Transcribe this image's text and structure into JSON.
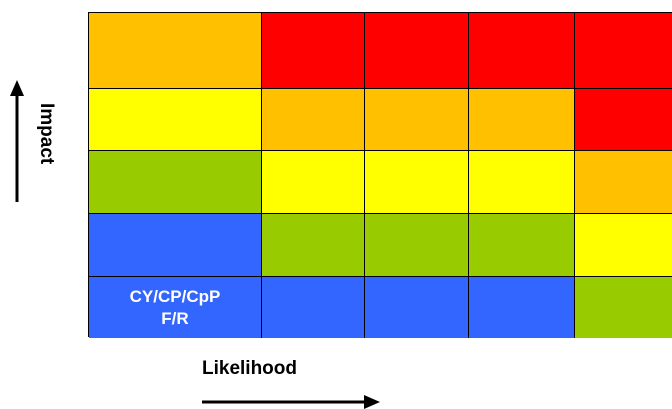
{
  "diagram": {
    "y_axis_label": "Impact",
    "x_axis_label": "Likelihood",
    "colors": {
      "red": "#ff0000",
      "orange": "#ffc000",
      "yellow": "#ffff00",
      "green": "#99cc00",
      "blue": "#3366ff"
    },
    "grid": [
      [
        "orange",
        "red",
        "red",
        "red",
        "red"
      ],
      [
        "yellow",
        "orange",
        "orange",
        "orange",
        "red"
      ],
      [
        "green",
        "yellow",
        "yellow",
        "yellow",
        "orange"
      ],
      [
        "blue",
        "green",
        "green",
        "green",
        "yellow"
      ],
      [
        "blue",
        "blue",
        "blue",
        "blue",
        "green"
      ]
    ],
    "cell_label": "CY/CP/CpP\nF/R"
  }
}
